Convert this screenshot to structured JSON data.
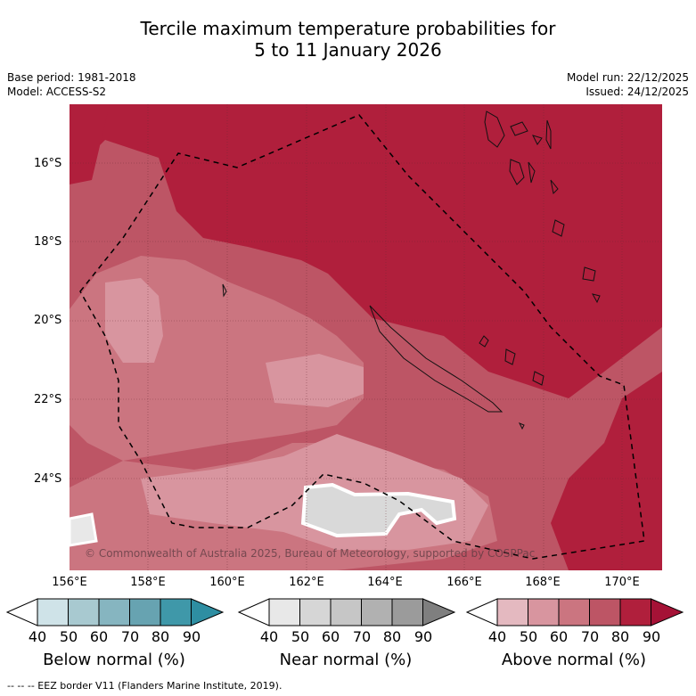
{
  "title": {
    "line1": "Tercile maximum temperature probabilities for",
    "line2": "5 to 11 January 2026"
  },
  "meta_left": {
    "base_period": "Base period: 1981-2018",
    "model": "Model: ACCESS-S2"
  },
  "meta_right": {
    "model_run": "Model run: 22/12/2025",
    "issued": "Issued: 24/12/2025"
  },
  "map": {
    "lat_labels": [
      "16°S",
      "18°S",
      "20°S",
      "22°S",
      "24°S"
    ],
    "lon_labels": [
      "156°E",
      "158°E",
      "160°E",
      "162°E",
      "164°E",
      "166°E",
      "168°E",
      "170°E"
    ],
    "copyright": "© Commonwealth of Australia 2025, Bureau of Meteorology, supported by COSPPac"
  },
  "legend": {
    "ticks": [
      "40",
      "50",
      "60",
      "70",
      "80",
      "90"
    ],
    "below": {
      "label": "Below normal (%)",
      "colors": [
        "#cfe3e8",
        "#a8c9d0",
        "#86b5c0",
        "#67a3b1",
        "#3f98a9",
        "#2e8ea2"
      ]
    },
    "near": {
      "label": "Near normal (%)",
      "colors": [
        "#e8e8e8",
        "#d6d6d6",
        "#c6c6c6",
        "#b1b1b1",
        "#9b9b9b",
        "#7f7f7f"
      ]
    },
    "above": {
      "label": "Above normal (%)",
      "colors": [
        "#e4b9c0",
        "#d8959f",
        "#cb7580",
        "#bd5565",
        "#b01f3c",
        "#a51236"
      ]
    }
  },
  "footer": "--  --  -- EEZ border V11 (Flanders Marine Institute, 2019)."
}
